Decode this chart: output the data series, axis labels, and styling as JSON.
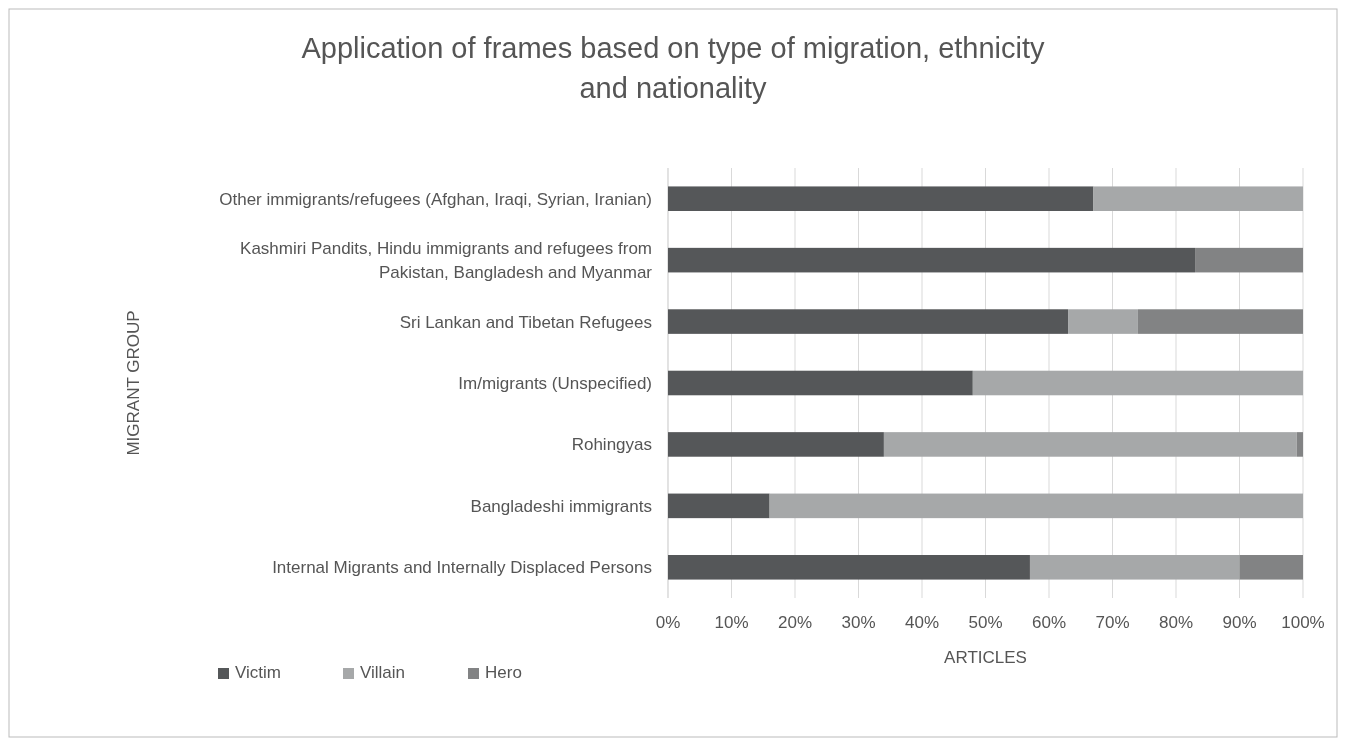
{
  "chart_data": {
    "type": "bar",
    "orientation": "horizontal",
    "stacked": true,
    "title": "Application of frames based on type of migration, ethnicity and nationality",
    "xlabel": "ARTICLES",
    "ylabel": "MIGRANT GROUP",
    "categories": [
      "Other immigrants/refugees (Afghan, Iraqi, Syrian, Iranian)",
      "Kashmiri Pandits, Hindu immigrants and refugees from Pakistan, Bangladesh and Myanmar",
      "Sri Lankan and Tibetan Refugees",
      "Im/migrants (Unspecified)",
      "Rohingyas",
      "Bangladeshi immigrants",
      "Internal Migrants and Internally Displaced Persons"
    ],
    "series": [
      {
        "name": "Victim",
        "color": "#555759",
        "values": [
          67,
          83,
          63,
          48,
          34,
          16,
          57
        ]
      },
      {
        "name": "Villain",
        "color": "#a6a8a9",
        "values": [
          33,
          0,
          11,
          52,
          65,
          84,
          33
        ]
      },
      {
        "name": "Hero",
        "color": "#828384",
        "values": [
          0,
          17,
          26,
          0,
          1,
          0,
          10
        ]
      }
    ],
    "xlim": [
      0,
      100
    ],
    "xticks": [
      {
        "value": 0,
        "label": "0%"
      },
      {
        "value": 10,
        "label": "10%"
      },
      {
        "value": 20,
        "label": "20%"
      },
      {
        "value": 30,
        "label": "30%"
      },
      {
        "value": 40,
        "label": "40%"
      },
      {
        "value": 50,
        "label": "50%"
      },
      {
        "value": 60,
        "label": "60%"
      },
      {
        "value": 70,
        "label": "70%"
      },
      {
        "value": 80,
        "label": "80%"
      },
      {
        "value": 90,
        "label": "90%"
      },
      {
        "value": 100,
        "label": "100%"
      }
    ],
    "grid": "x",
    "legend": "bottom left"
  }
}
